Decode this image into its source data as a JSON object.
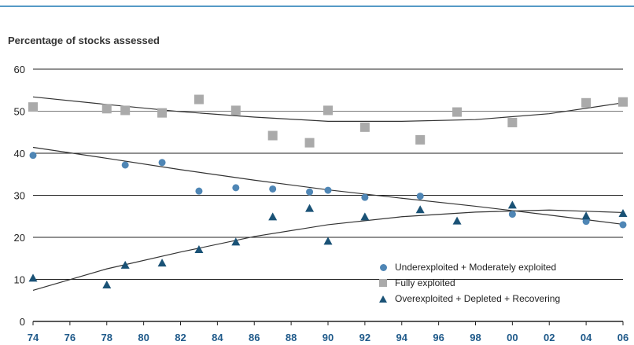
{
  "colors": {
    "circle": "#4f86b5",
    "square": "#aaaaaa",
    "triangle": "#1a5276",
    "trend": "#333333",
    "grid": "#222222",
    "topRule": "#1f78b4"
  },
  "chart_data": {
    "type": "scatter",
    "title": "",
    "ylabel": "Percentage of stocks assessed",
    "xlabel": "",
    "ylim": [
      0,
      60
    ],
    "xlim": [
      1974,
      2006
    ],
    "grid": true,
    "legend_position": "bottom-right",
    "x_ticks": [
      "74",
      "76",
      "78",
      "80",
      "82",
      "84",
      "86",
      "88",
      "90",
      "92",
      "94",
      "96",
      "98",
      "00",
      "02",
      "04",
      "06"
    ],
    "y_ticks": [
      "0",
      "10",
      "20",
      "30",
      "40",
      "50",
      "60"
    ],
    "series": [
      {
        "name": "Underexploited + Moderately exploited",
        "marker": "circle",
        "x": [
          1974,
          1979,
          1981,
          1983,
          1985,
          1987,
          1989,
          1990,
          1992,
          1995,
          2000,
          2004,
          2006
        ],
        "y": [
          39.5,
          37.2,
          37.8,
          31.0,
          31.8,
          31.5,
          30.8,
          31.2,
          29.5,
          29.8,
          25.5,
          23.8,
          23.0
        ],
        "trend": [
          [
            1974,
            41.4
          ],
          [
            1978,
            38.8
          ],
          [
            1982,
            36.1
          ],
          [
            1986,
            33.6
          ],
          [
            1990,
            31.3
          ],
          [
            1994,
            29.3
          ],
          [
            1998,
            27.4
          ],
          [
            2002,
            25.3
          ],
          [
            2006,
            23.1
          ]
        ]
      },
      {
        "name": "Fully exploited",
        "marker": "square",
        "x": [
          1974,
          1978,
          1979,
          1981,
          1983,
          1985,
          1987,
          1989,
          1990,
          1992,
          1995,
          1997,
          2000,
          2004,
          2006
        ],
        "y": [
          51.0,
          50.6,
          50.2,
          49.6,
          52.8,
          50.2,
          44.2,
          42.5,
          50.2,
          46.2,
          43.2,
          49.8,
          47.3,
          52.0,
          52.2
        ],
        "trend": [
          [
            1974,
            53.4
          ],
          [
            1978,
            51.6
          ],
          [
            1982,
            49.9
          ],
          [
            1986,
            48.6
          ],
          [
            1990,
            47.6
          ],
          [
            1994,
            47.6
          ],
          [
            1998,
            48.0
          ],
          [
            2002,
            49.4
          ],
          [
            2006,
            52.0
          ]
        ]
      },
      {
        "name": "Overexploited + Depleted + Recovering",
        "marker": "triangle",
        "x": [
          1974,
          1978,
          1979,
          1981,
          1983,
          1985,
          1987,
          1989,
          1990,
          1992,
          1995,
          1997,
          2000,
          2004,
          2006
        ],
        "y": [
          10.2,
          8.6,
          13.3,
          13.8,
          17.0,
          18.8,
          24.8,
          26.8,
          19.0,
          24.8,
          26.5,
          23.8,
          27.6,
          25.0,
          25.6
        ],
        "trend": [
          [
            1974,
            7.4
          ],
          [
            1978,
            12.5
          ],
          [
            1982,
            16.5
          ],
          [
            1986,
            20.2
          ],
          [
            1990,
            23.0
          ],
          [
            1994,
            24.9
          ],
          [
            1998,
            26.0
          ],
          [
            2002,
            26.5
          ],
          [
            2006,
            25.9
          ]
        ]
      }
    ],
    "reference_line_value": 50
  }
}
